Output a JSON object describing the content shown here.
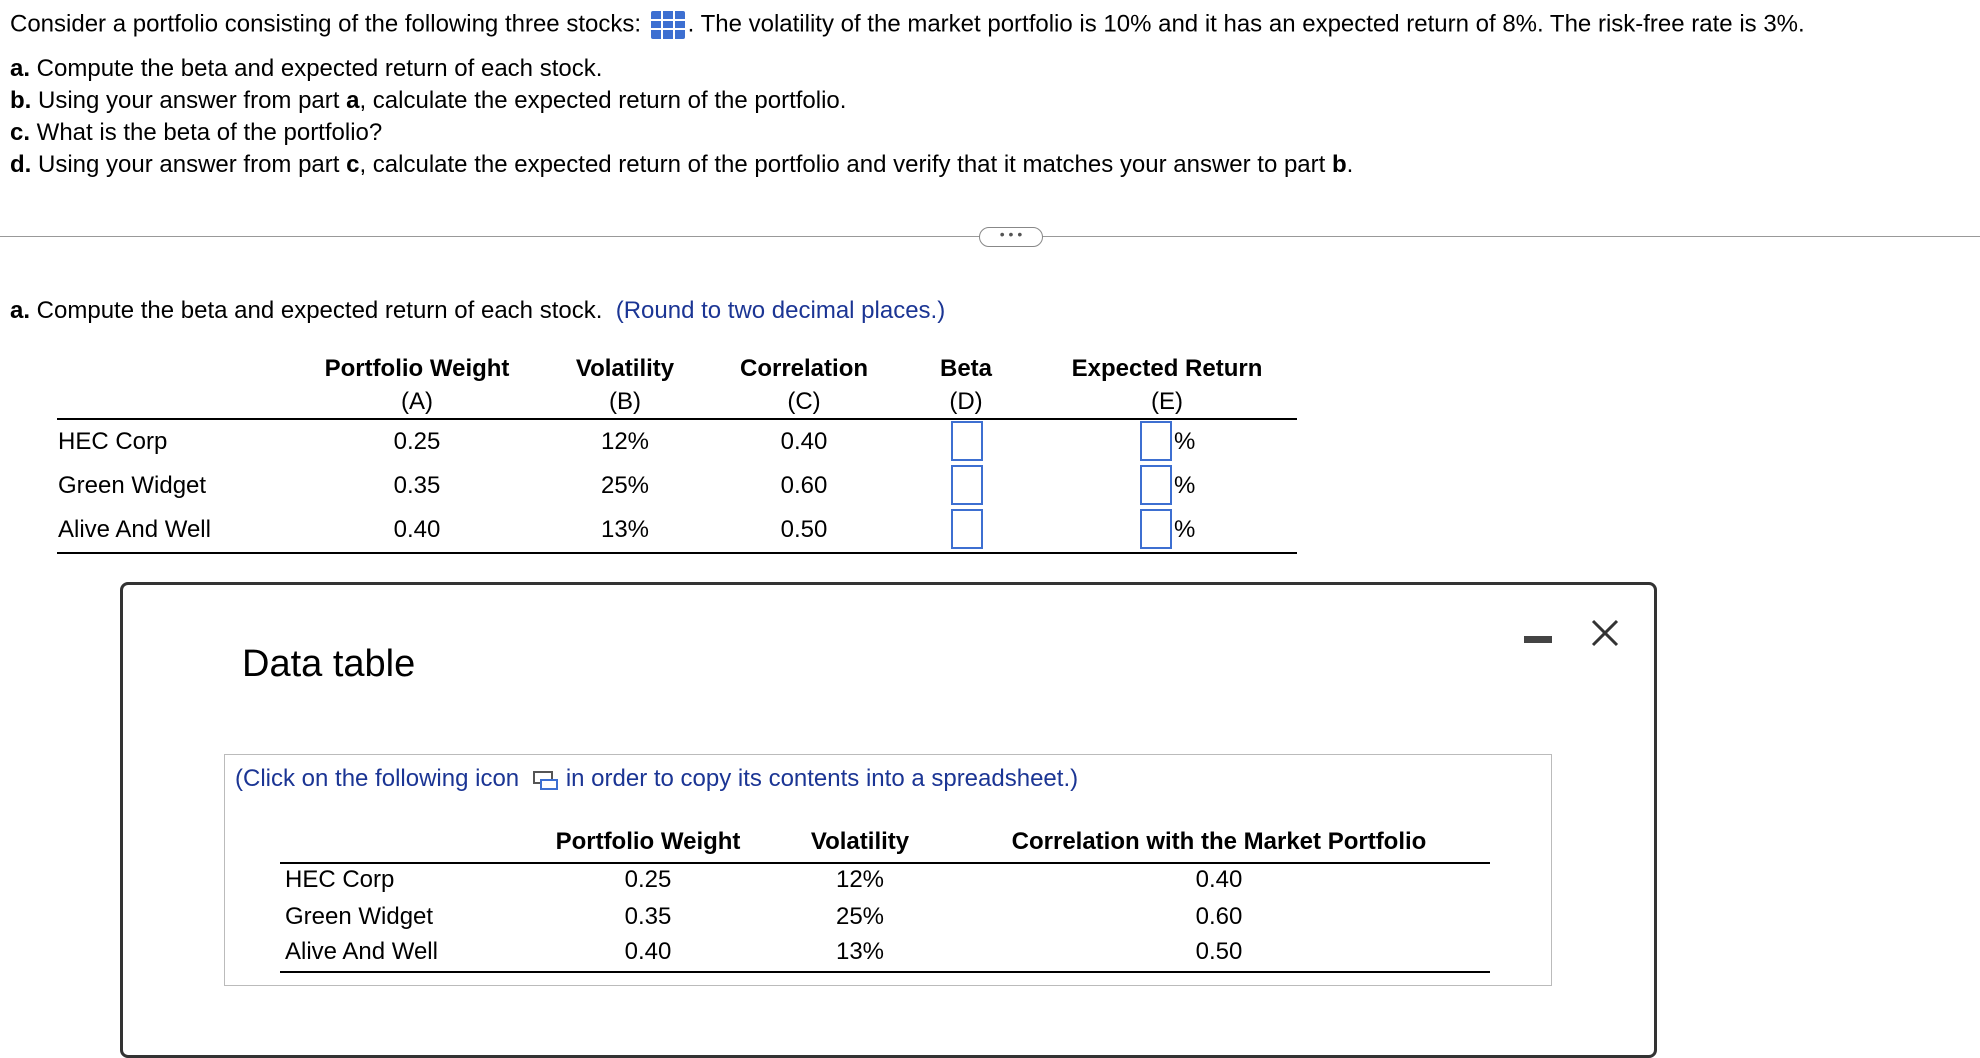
{
  "question": {
    "intro": "Consider a portfolio consisting of the following three stocks:",
    "intro_rest": ". The volatility of the market portfolio is 10% and it has an expected return of 8%. The risk-free rate is 3%.",
    "parts": [
      [
        {
          "text": "a.",
          "bold": true
        },
        {
          "text": " Compute the beta and expected return of each stock.",
          "bold": false
        }
      ],
      [
        {
          "text": "b.",
          "bold": true
        },
        {
          "text": " Using your answer from part ",
          "bold": false
        },
        {
          "text": "a",
          "bold": true
        },
        {
          "text": ", calculate the expected return of the portfolio.",
          "bold": false
        }
      ],
      [
        {
          "text": "c.",
          "bold": true
        },
        {
          "text": " What is the beta of the portfolio?",
          "bold": false
        }
      ],
      [
        {
          "text": "d.",
          "bold": true
        },
        {
          "text": " Using your answer from part ",
          "bold": false
        },
        {
          "text": "c",
          "bold": true
        },
        {
          "text": ", calculate the expected return of the portfolio and verify that it matches your answer to part ",
          "bold": false
        },
        {
          "text": "b",
          "bold": true
        },
        {
          "text": ".",
          "bold": false
        }
      ]
    ]
  },
  "section_a": {
    "label": "a.",
    "text": " Compute the beta and expected return of each stock.",
    "hint": "(Round to two decimal places.)",
    "headers": [
      [
        "Portfolio Weight",
        "(A)"
      ],
      [
        "Volatility",
        "(B)"
      ],
      [
        "Correlation",
        "(C)"
      ],
      [
        "Beta",
        "(D)"
      ],
      [
        "Expected Return",
        "(E)"
      ]
    ],
    "rows": [
      [
        "HEC Corp",
        "0.25",
        "12%",
        "0.40"
      ],
      [
        "Green Widget",
        "0.35",
        "25%",
        "0.60"
      ],
      [
        "Alive And Well",
        "0.40",
        "13%",
        "0.50"
      ]
    ],
    "unit": "%"
  },
  "data_table": {
    "title": "Data table",
    "instruction": "(Click on the following icon",
    "instruction_rest": "in order to copy its contents into a spreadsheet.)",
    "headers": [
      "Portfolio Weight",
      "Volatility",
      "Correlation with the Market Portfolio"
    ],
    "rows": [
      [
        "HEC Corp",
        "0.25",
        "12%",
        "0.40"
      ],
      [
        "Green Widget",
        "0.35",
        "25%",
        "0.60"
      ],
      [
        "Alive And Well",
        "0.40",
        "13%",
        "0.50"
      ]
    ]
  }
}
